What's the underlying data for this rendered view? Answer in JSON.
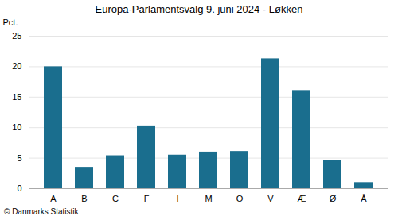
{
  "chart_data": {
    "type": "bar",
    "title": "Europa-Parlamentsvalg 9. juni 2024 - Løkken",
    "categories": [
      "A",
      "B",
      "C",
      "F",
      "I",
      "M",
      "O",
      "V",
      "Æ",
      "Ø",
      "Å"
    ],
    "values": [
      20.0,
      3.5,
      5.4,
      10.3,
      5.5,
      6.0,
      6.1,
      21.3,
      16.1,
      4.6,
      1.0
    ],
    "color": "#1a6e8e",
    "ylabel": "Pct.",
    "ylim": [
      0,
      25
    ],
    "yticks": [
      0,
      5,
      10,
      15,
      20,
      25
    ],
    "grid": true,
    "footer": "© Danmarks Statistik"
  }
}
